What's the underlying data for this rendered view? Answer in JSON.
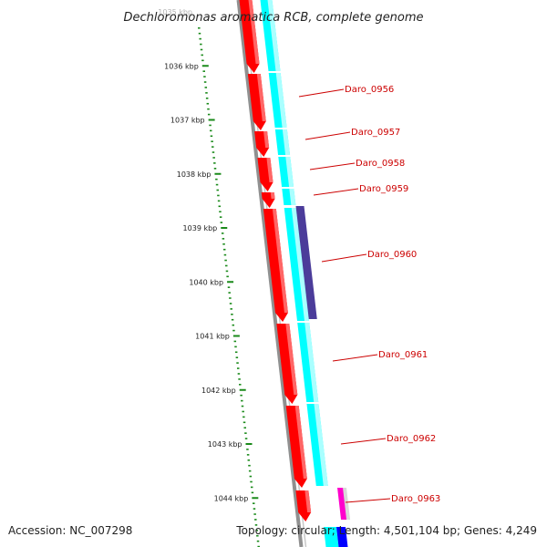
{
  "title": "Dechloromonas aromatica RCB, complete genome",
  "scale_labels": [
    "1035 kbp",
    "1036 kbp",
    "1037 kbp",
    "1038 kbp",
    "1039 kbp",
    "1040 kbp",
    "1041 kbp",
    "1042 kbp",
    "1043 kbp",
    "1044 kbp"
  ],
  "genes": [
    "Daro_0956",
    "Daro_0957",
    "Daro_0958",
    "Daro_0959",
    "Daro_0960",
    "Daro_0961",
    "Daro_0962",
    "Daro_0963"
  ],
  "footer": {
    "accession": "Accession: NC_007298",
    "topology": "Topology: circular; Length: 4,501,104 bp; Genes: 4,249"
  },
  "colors": {
    "cds_forward": "#ff0000",
    "feature_cyan": "#00ffff",
    "feature_purple": "#4b3c9a",
    "feature_magenta": "#ff00cc",
    "backbone": "#888888",
    "ticks": "#1a8a1a",
    "label": "#cc0000"
  }
}
